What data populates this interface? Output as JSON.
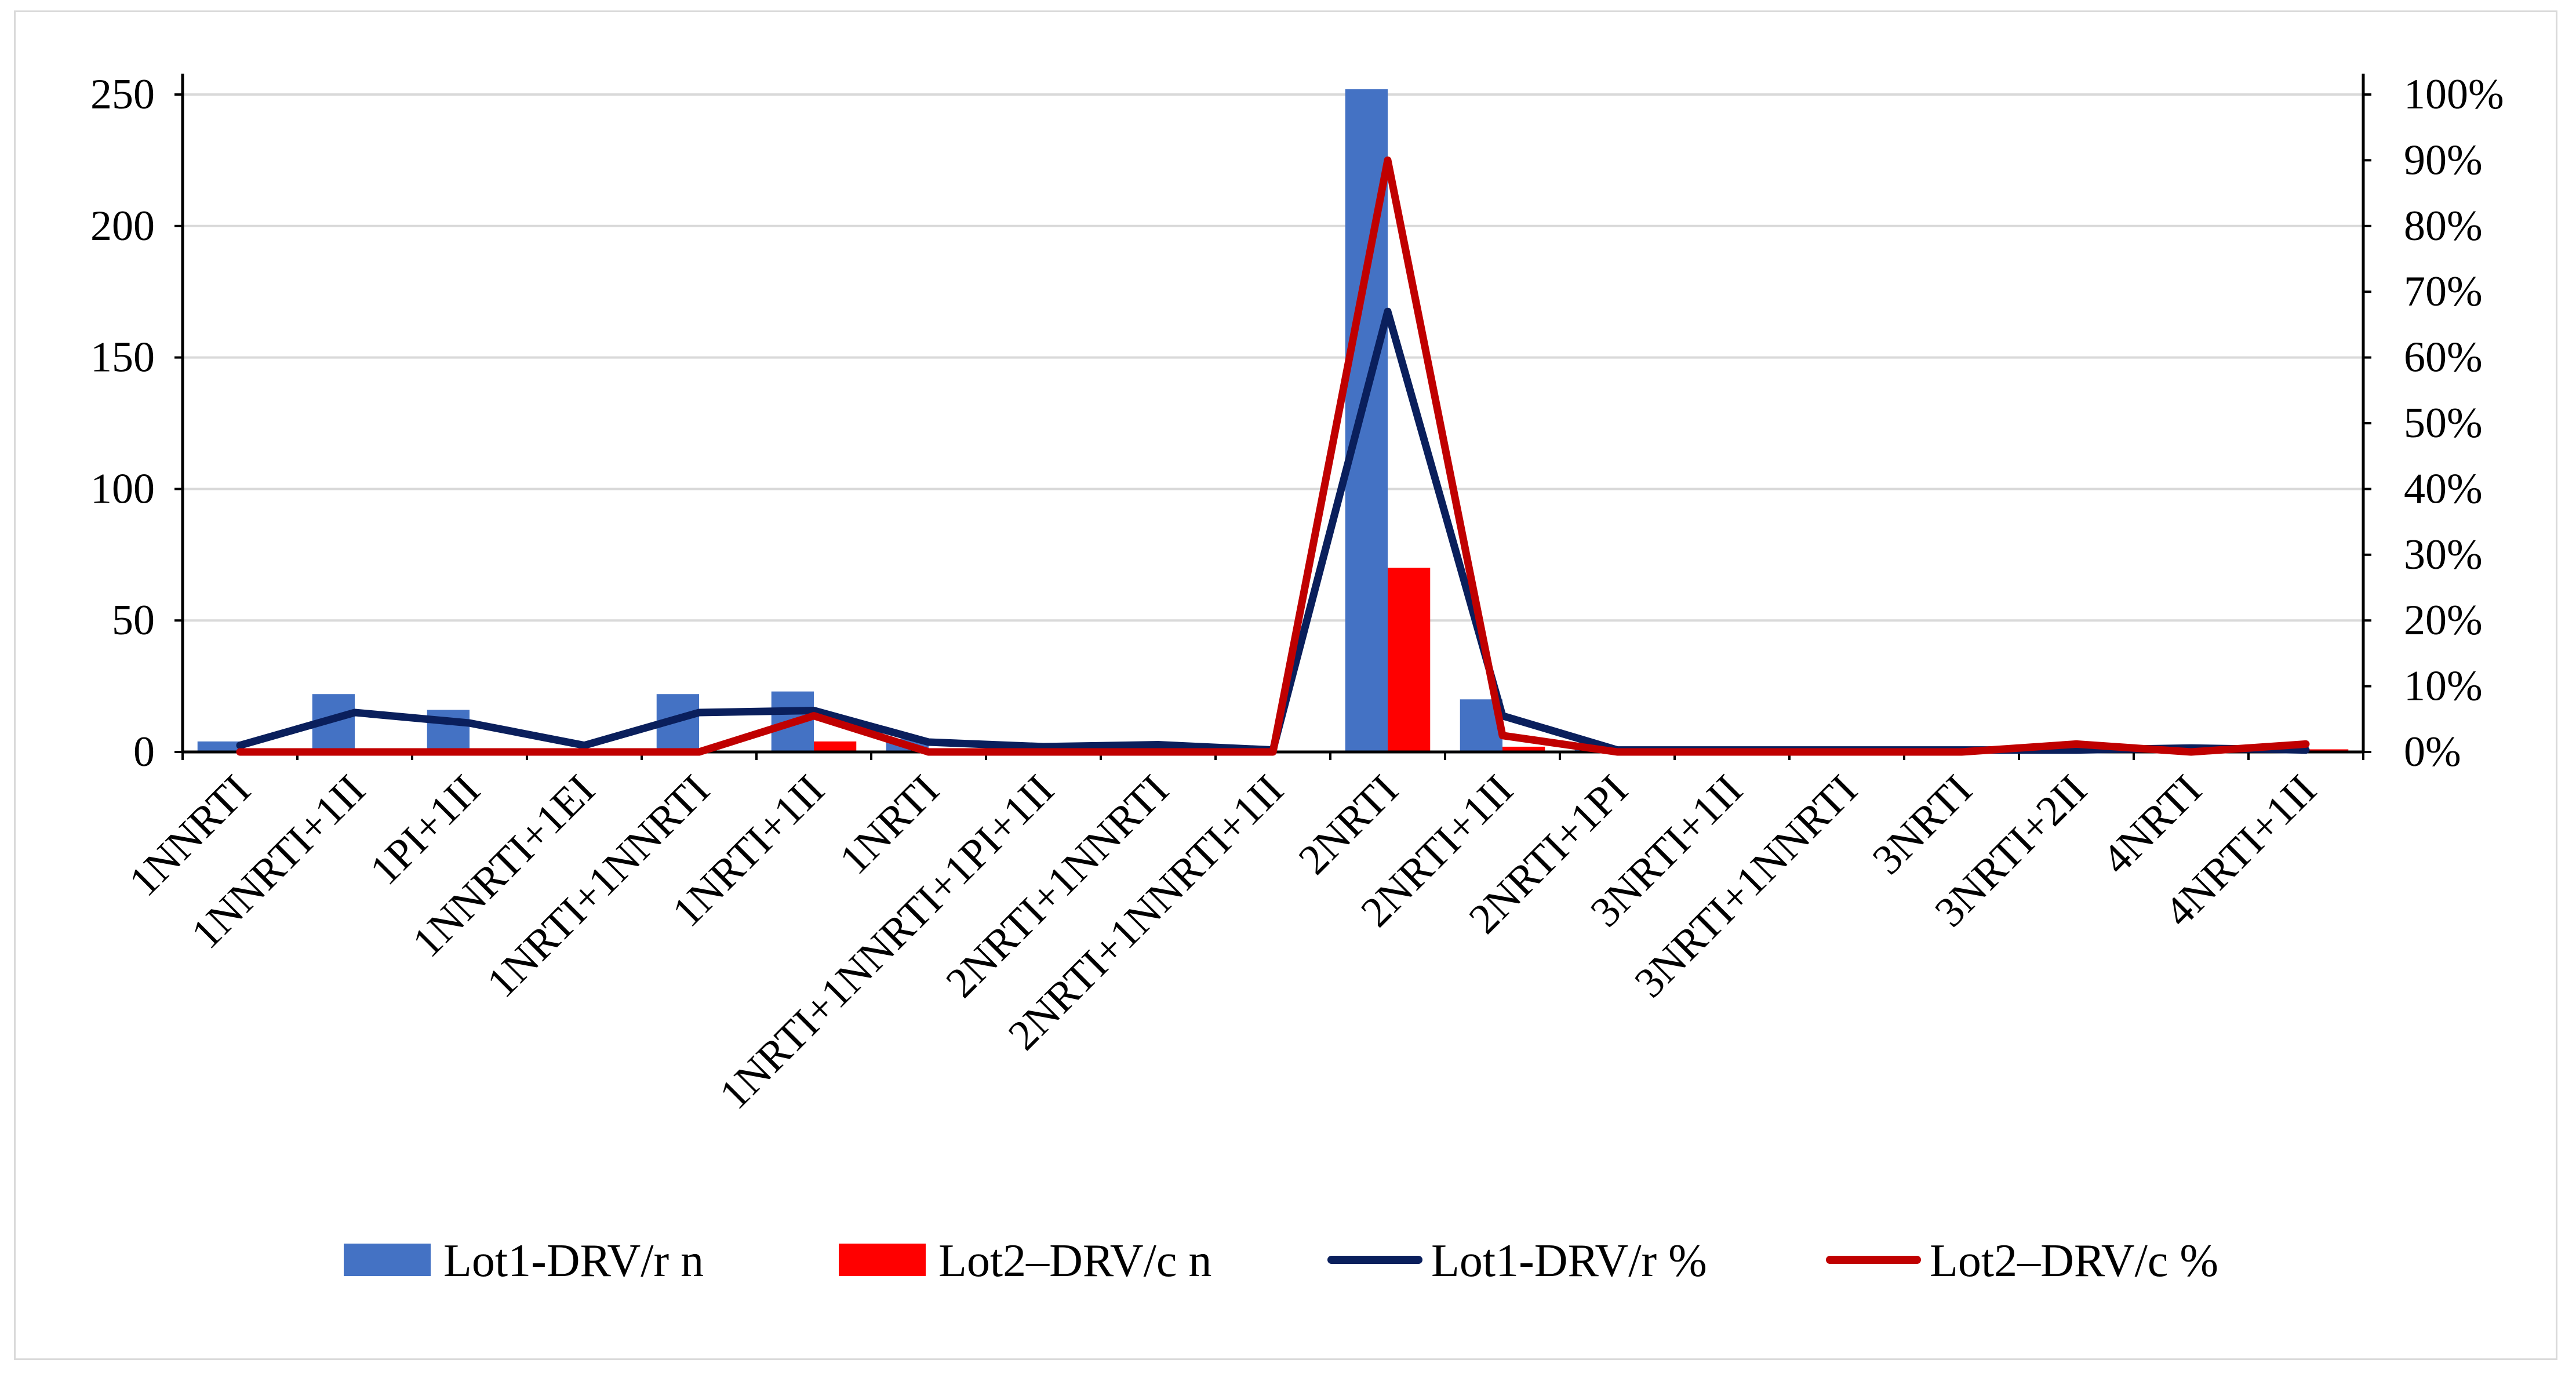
{
  "chart_data": {
    "type": "bar",
    "title": "",
    "xlabel": "",
    "ylabel": "",
    "ylim": [
      0,
      250
    ],
    "y2lim": [
      0,
      100
    ],
    "y_ticks": [
      "0",
      "50",
      "100",
      "150",
      "200",
      "250"
    ],
    "y2_ticks": [
      "0%",
      "10%",
      "20%",
      "30%",
      "40%",
      "50%",
      "60%",
      "70%",
      "80%",
      "90%",
      "100%"
    ],
    "grid": true,
    "legend_position": "bottom",
    "categories": [
      "1NNRTI",
      "1NNRTI+1II",
      "1PI+1II",
      "1NNRTI+1EI",
      "1NRTI+1NNRTI",
      "1NRTI+1II",
      "1NRTI",
      "1NRTI+1NNRTI+1PI+1II",
      "2NRTI+1NNRTI",
      "2NRTI+1NNRTI+1II",
      "2NRTI",
      "2NRTI+1II",
      "2NRTI+1PI",
      "3NRTI+1II",
      "3NRTI+1NNRTI",
      "3NRTI",
      "3NRTI+2II",
      "4NRTI",
      "4NRTI+1II"
    ],
    "series": [
      {
        "name": "Lot1-DRV/r  n",
        "kind": "bar",
        "axis": "left",
        "color": "#4472c4",
        "values": [
          4,
          22,
          16,
          1,
          22,
          23,
          5,
          1,
          1,
          0,
          252,
          20,
          1,
          1,
          1,
          1,
          1,
          1,
          1
        ]
      },
      {
        "name": "Lot2–DRV/c  n",
        "kind": "bar",
        "axis": "left",
        "color": "#ff0000",
        "values": [
          0,
          0,
          0,
          0,
          0,
          4,
          0,
          0,
          0,
          0,
          70,
          2,
          0,
          0,
          0,
          0,
          1,
          0,
          1
        ]
      },
      {
        "name": "Lot1-DRV/r  %",
        "kind": "line",
        "axis": "right",
        "color": "#0a1f5c",
        "values": [
          1,
          6,
          4.4,
          1,
          6,
          6.3,
          1.5,
          0.8,
          1.1,
          0.3,
          67,
          5.5,
          0.3,
          0.3,
          0.3,
          0.3,
          0.3,
          0.6,
          0.3
        ]
      },
      {
        "name": "Lot2–DRV/c  %",
        "kind": "line",
        "axis": "right",
        "color": "#c00000",
        "values": [
          0,
          0,
          0,
          0,
          0,
          5.5,
          0,
          0,
          0,
          0,
          90,
          2.5,
          0,
          0,
          0,
          0,
          1.2,
          0,
          1.2
        ]
      }
    ]
  }
}
